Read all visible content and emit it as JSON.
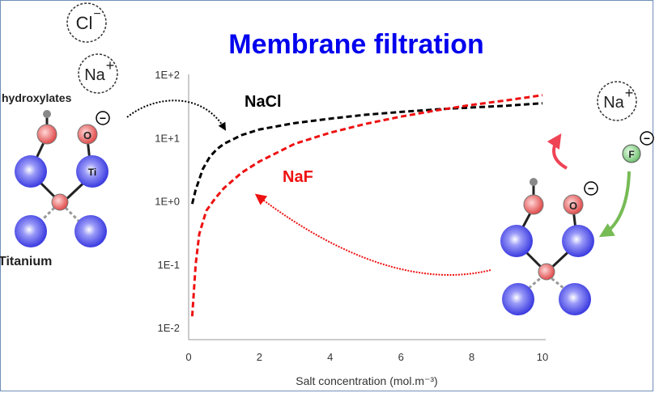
{
  "title": "Membrane filtration",
  "ions": {
    "chloride": "Cl",
    "chloride_charge": "−",
    "sodium": "Na",
    "sodium_charge": "+",
    "fluoride": "F",
    "oxygen": "O",
    "titanium": "Ti",
    "minus": "−"
  },
  "labels": {
    "hydroxylates": "hydroxylates",
    "titanium": "Titanium"
  },
  "colors": {
    "title": "#0000ee",
    "nacl": "#000000",
    "naf": "#ee1111",
    "titanium_atom": "#5555ee",
    "oxygen_atom": "#ee6666",
    "fluoride_atom": "#88cc88",
    "green_arrow": "#77bb55",
    "red_arrow": "#ee4455"
  },
  "chart_data": {
    "type": "line",
    "xlabel": "Salt concentration (mol.m⁻³)",
    "ylabel": "",
    "yscale": "log",
    "xlim": [
      0,
      10
    ],
    "ylim": [
      0.01,
      100
    ],
    "xticks": [
      "0",
      "2",
      "4",
      "6",
      "8",
      "10"
    ],
    "yticks": [
      "1E-2",
      "1E-1",
      "1E+0",
      "1E+1",
      "1E+2"
    ],
    "grid": false,
    "series": [
      {
        "name": "NaCl",
        "style": "dashed",
        "x": [
          0.1,
          0.2,
          0.4,
          0.6,
          0.8,
          1,
          1.5,
          2,
          3,
          4,
          5,
          6,
          7,
          8,
          9,
          10
        ],
        "y": [
          0.9,
          1.5,
          3.2,
          5,
          6.6,
          8,
          11,
          13.5,
          17,
          20,
          23,
          25.5,
          28,
          30,
          32,
          35
        ]
      },
      {
        "name": "NaF",
        "style": "dashed",
        "x": [
          0.1,
          0.2,
          0.3,
          0.5,
          0.75,
          1,
          1.5,
          2,
          3,
          4,
          5,
          6,
          7,
          8,
          9,
          10
        ],
        "y": [
          0.015,
          0.1,
          0.3,
          0.7,
          1.1,
          1.6,
          2.8,
          4.2,
          8,
          12,
          16.5,
          21.5,
          27,
          33,
          39,
          47
        ]
      }
    ]
  }
}
